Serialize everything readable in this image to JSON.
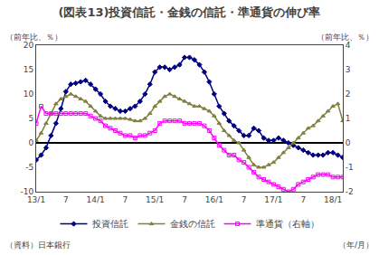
{
  "chart_data": {
    "type": "line",
    "title": "(図表13)投資信託・金銭の信託・準通貨の伸び率",
    "ylabel": "（前年比、％）",
    "y2label": "（前年比、％）",
    "xlabel": "（年/月）",
    "annotations": [
      "（資料）日本銀行"
    ],
    "categories": [
      "13/1",
      null,
      null,
      null,
      null,
      null,
      "7",
      null,
      null,
      null,
      null,
      null,
      "14/1",
      null,
      null,
      null,
      null,
      null,
      "7",
      null,
      null,
      null,
      null,
      null,
      "15/1",
      null,
      null,
      null,
      null,
      null,
      "7",
      null,
      null,
      null,
      null,
      null,
      "16/1",
      null,
      null,
      null,
      null,
      null,
      "7",
      null,
      null,
      null,
      null,
      null,
      "17/1",
      null,
      null,
      null,
      null,
      null,
      "7",
      null,
      null,
      null,
      null,
      null,
      "18/1",
      null,
      null
    ],
    "ylim": [
      -10,
      20
    ],
    "yticks": [
      -10,
      -5,
      0,
      5,
      10,
      15,
      20
    ],
    "y2lim": [
      -2,
      4
    ],
    "y2ticks": [
      -2,
      -1,
      0,
      1,
      2,
      3,
      4
    ],
    "grid": false,
    "legend": "bottom",
    "series": [
      {
        "name": "投資信託",
        "color": "#000080",
        "marker": "diamond",
        "values": [
          -3.5,
          -2.5,
          -1.0,
          1.5,
          4.0,
          7.0,
          10.5,
          12.0,
          12.2,
          12.5,
          12.8,
          12.0,
          11.0,
          10.0,
          8.5,
          7.5,
          7.0,
          6.5,
          6.5,
          7.0,
          7.5,
          8.5,
          10.0,
          12.0,
          14.5,
          15.5,
          15.5,
          15.0,
          15.5,
          16.0,
          17.5,
          17.5,
          17.0,
          16.0,
          14.5,
          12.5,
          10.0,
          7.5,
          6.0,
          4.5,
          3.5,
          2.5,
          1.5,
          1.5,
          3.0,
          2.5,
          1.0,
          0.5,
          0.5,
          1.0,
          0.5,
          0.0,
          -0.5,
          -1.0,
          -1.5,
          -2.0,
          -2.5,
          -2.5,
          -2.5,
          -2.0,
          -2.0,
          -2.5,
          -3.0
        ]
      },
      {
        "name": "金銭の信託",
        "color": "#808040",
        "marker": "triangle-up",
        "values": [
          0.5,
          2.0,
          4.0,
          6.0,
          8.0,
          9.0,
          9.5,
          10.0,
          9.5,
          9.0,
          8.5,
          7.5,
          6.5,
          5.5,
          5.0,
          5.0,
          5.0,
          5.0,
          5.0,
          4.8,
          4.5,
          4.5,
          5.0,
          6.0,
          7.5,
          8.5,
          9.5,
          10.0,
          9.5,
          9.0,
          8.5,
          8.0,
          7.5,
          7.5,
          7.0,
          6.5,
          5.5,
          4.0,
          2.5,
          1.5,
          0.5,
          0.0,
          -1.5,
          -3.0,
          -4.5,
          -5.0,
          -5.0,
          -4.5,
          -4.0,
          -3.0,
          -2.0,
          -1.0,
          0.0,
          1.0,
          2.0,
          3.0,
          3.5,
          4.5,
          5.5,
          6.5,
          7.5,
          8.0,
          4.5
        ]
      },
      {
        "name": "準通貨（右軸）",
        "color": "#FF00FF",
        "marker": "square-open",
        "axis": "y2",
        "values": [
          0.8,
          1.5,
          1.2,
          1.2,
          1.2,
          1.2,
          1.2,
          1.2,
          1.2,
          1.2,
          1.2,
          1.1,
          1.0,
          0.9,
          0.7,
          0.6,
          0.5,
          0.4,
          0.3,
          0.3,
          0.2,
          0.3,
          0.3,
          0.4,
          0.5,
          0.8,
          0.9,
          0.9,
          0.9,
          0.9,
          0.8,
          0.8,
          0.8,
          0.8,
          0.7,
          0.5,
          0.2,
          -0.1,
          -0.3,
          -0.5,
          -0.5,
          -0.7,
          -0.8,
          -1.0,
          -1.2,
          -1.4,
          -1.5,
          -1.6,
          -1.7,
          -1.8,
          -1.9,
          -2.0,
          -1.9,
          -1.7,
          -1.6,
          -1.5,
          -1.4,
          -1.3,
          -1.3,
          -1.3,
          -1.4,
          -1.4,
          -1.4
        ]
      }
    ]
  }
}
